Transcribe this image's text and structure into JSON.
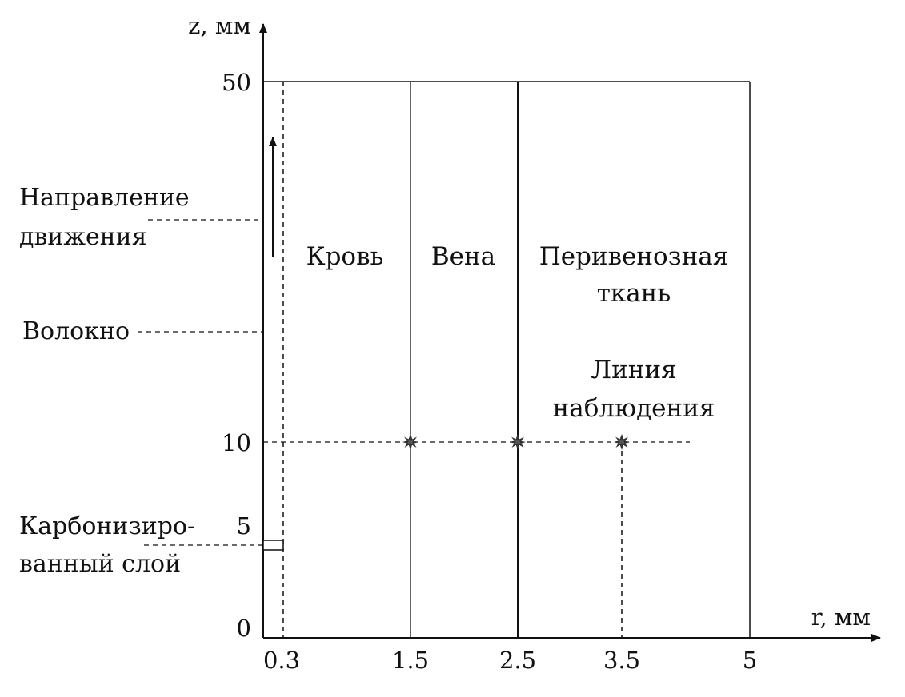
{
  "axes": {
    "z_title": "z, мм",
    "r_title": "r, мм",
    "z_ticks": [
      "50",
      "10",
      "5",
      "0"
    ],
    "r_ticks": [
      "0.3",
      "1.5",
      "2.5",
      "3.5",
      "5"
    ]
  },
  "regions": {
    "blood": "Кровь",
    "vein": "Вена",
    "perivenous_line1": "Перивенозная",
    "perivenous_line2": "ткань"
  },
  "observation": {
    "line1": "Линия",
    "line2": "наблюдения"
  },
  "side_labels": {
    "direction_line1": "Направление",
    "direction_line2": "движения",
    "fiber": "Волокно",
    "carbon_line1": "Карбонизиро-",
    "carbon_line2": "ванный слой"
  },
  "colors": {
    "line": "#111111"
  }
}
